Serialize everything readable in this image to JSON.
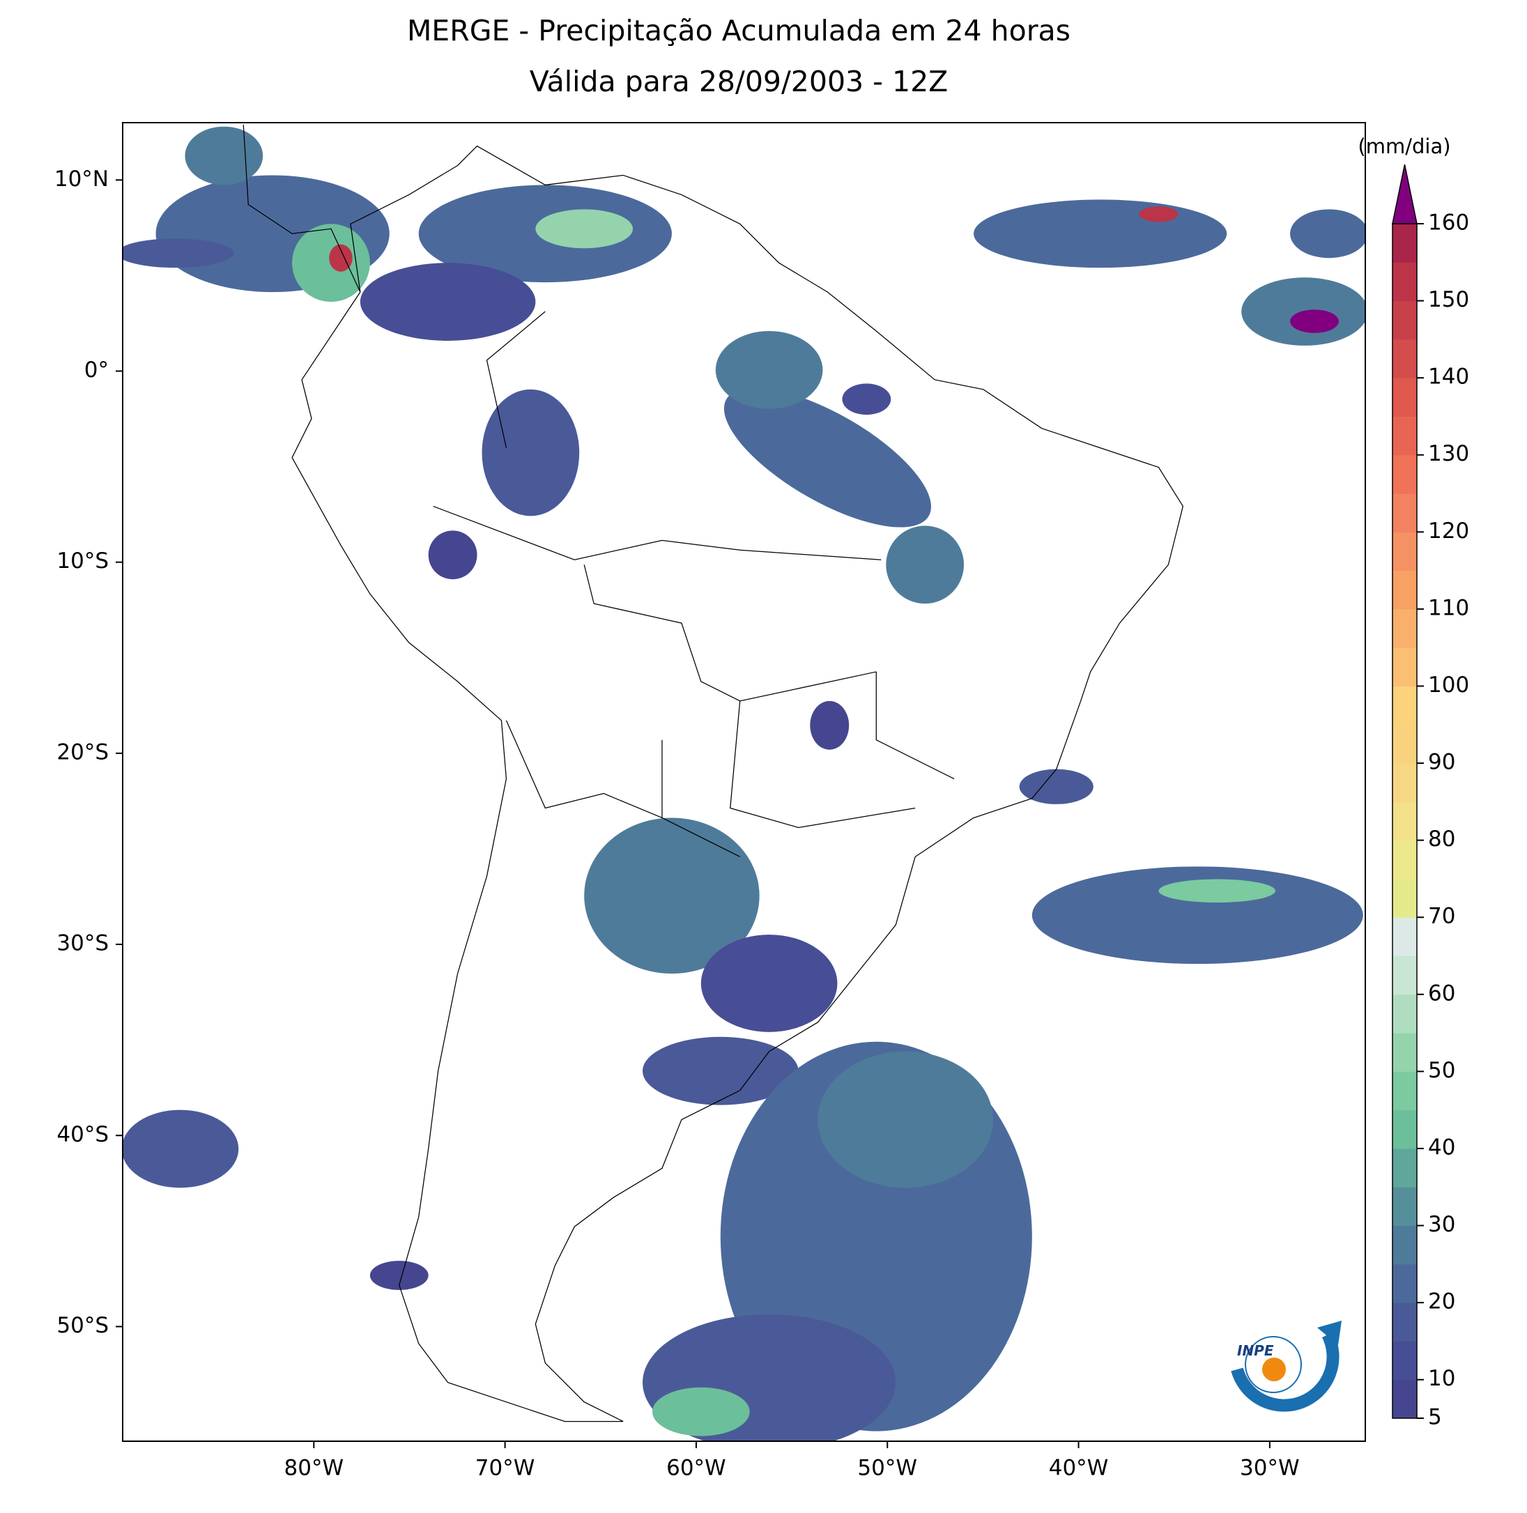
{
  "title": [
    "MERGE - Precipitação Acumulada em 24 horas",
    "Válida para 28/09/2003 - 12Z"
  ],
  "map": {
    "xlim": [
      -90,
      -25
    ],
    "ylim": [
      -56,
      13
    ],
    "xticks": [
      {
        "value": -80,
        "label": "80°W"
      },
      {
        "value": -70,
        "label": "70°W"
      },
      {
        "value": -60,
        "label": "60°W"
      },
      {
        "value": -50,
        "label": "50°W"
      },
      {
        "value": -40,
        "label": "40°W"
      },
      {
        "value": -30,
        "label": "30°W"
      }
    ],
    "yticks": [
      {
        "value": 10,
        "label": "10°N"
      },
      {
        "value": 0,
        "label": "0°"
      },
      {
        "value": -10,
        "label": "10°S"
      },
      {
        "value": -20,
        "label": "20°S"
      },
      {
        "value": -30,
        "label": "30°S"
      },
      {
        "value": -40,
        "label": "40°S"
      },
      {
        "value": -50,
        "label": "50°S"
      }
    ]
  },
  "colorbar": {
    "label": "(mm/dia)",
    "lim": [
      5,
      160
    ],
    "ticks": [
      5,
      10,
      20,
      30,
      40,
      50,
      60,
      70,
      80,
      90,
      100,
      110,
      120,
      130,
      140,
      150,
      160
    ],
    "colors": [
      "#46458f",
      "#474e95",
      "#4a5a98",
      "#4b6a9b",
      "#4f7b9a",
      "#55909a",
      "#5fa79a",
      "#6cbf9b",
      "#7ccaa0",
      "#95d3ad",
      "#b0ddc0",
      "#c8e6d3",
      "#dde9e6",
      "#e4ea8c",
      "#ece88c",
      "#f3e08a",
      "#f6d884",
      "#f9d27e",
      "#fcd27a",
      "#fbbf74",
      "#f9b06c",
      "#f7a164",
      "#f59263",
      "#f28260",
      "#ef7259",
      "#e96553",
      "#e0584e",
      "#d44c4c",
      "#c8404a",
      "#bb3448",
      "#a9254a"
    ],
    "extend_color": "#800080"
  },
  "logo_text": "INPE"
}
